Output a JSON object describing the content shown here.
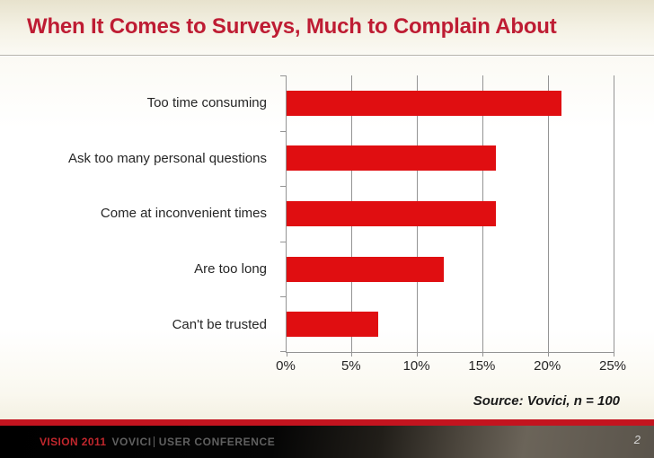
{
  "slide": {
    "title": "When It Comes to Surveys, Much to Complain About",
    "source_note": "Source: Vovici, n = 100",
    "page_number": "2"
  },
  "footer": {
    "brand": "VISION 2011",
    "company": "VOVICI",
    "event": "USER CONFERENCE"
  },
  "colors": {
    "title_red": "#be1c33",
    "bar_red": "#e00e11",
    "gridline_gray": "#949494",
    "footer_stripe_red": "#c3141f"
  },
  "chart_data": {
    "type": "bar",
    "orientation": "horizontal",
    "title": "",
    "categories": [
      "Too time consuming",
      "Ask too many personal questions",
      "Come at inconvenient times",
      "Are too long",
      "Can't be trusted"
    ],
    "values": [
      21,
      16,
      16,
      12,
      7
    ],
    "unit": "%",
    "xlabel": "",
    "ylabel": "",
    "xlim": [
      0,
      25
    ],
    "x_tick_step": 5,
    "x_ticks": [
      "0%",
      "5%",
      "10%",
      "15%",
      "20%",
      "25%"
    ],
    "gridlines": true,
    "legend": false,
    "bar_color": "#e00e11"
  }
}
